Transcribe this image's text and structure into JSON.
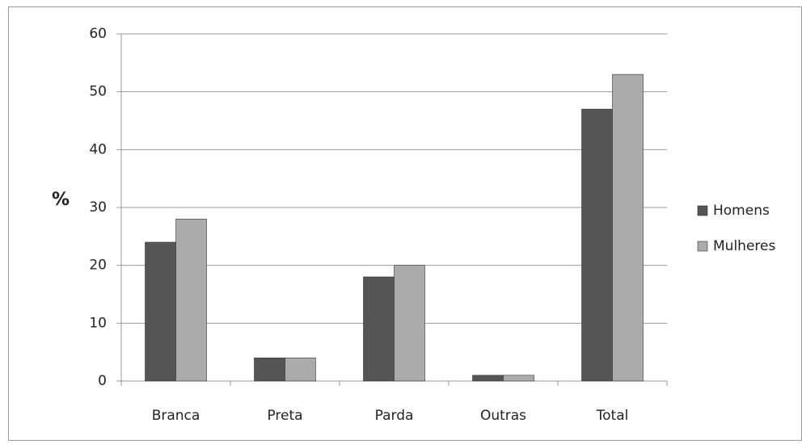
{
  "chart_data": {
    "type": "bar",
    "y_label": "%",
    "categories": [
      "Branca",
      "Preta",
      "Parda",
      "Outras",
      "Total"
    ],
    "series": [
      {
        "name": "Homens",
        "color": "#555555",
        "values": [
          24,
          4,
          18,
          1,
          47
        ]
      },
      {
        "name": "Mulheres",
        "color": "#ababab",
        "values": [
          28,
          4,
          20,
          1,
          53
        ]
      }
    ],
    "ylim": [
      0,
      60
    ],
    "yticks": [
      0,
      10,
      20,
      30,
      40,
      50,
      60
    ],
    "grid": true,
    "legend": "right"
  }
}
